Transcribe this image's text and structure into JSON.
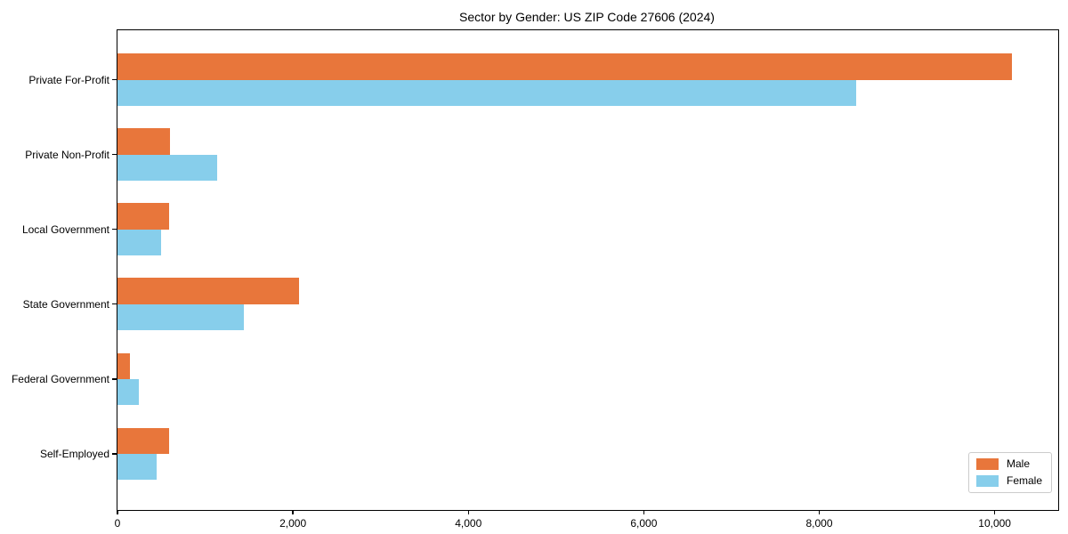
{
  "chart_data": {
    "type": "bar",
    "orientation": "horizontal",
    "title": "Sector by Gender: US ZIP Code 27606 (2024)",
    "categories": [
      "Private For-Profit",
      "Private Non-Profit",
      "Local Government",
      "State Government",
      "Federal Government",
      "Self-Employed"
    ],
    "series": [
      {
        "name": "Male",
        "color": "#e8763b",
        "values": [
          10200,
          600,
          590,
          2070,
          145,
          590
        ]
      },
      {
        "name": "Female",
        "color": "#87ceeb",
        "values": [
          8420,
          1140,
          500,
          1445,
          245,
          450
        ]
      }
    ],
    "xlabel": "",
    "ylabel": "",
    "xlim": [
      0,
      10724
    ],
    "x_ticks": [
      0,
      2000,
      4000,
      6000,
      8000,
      10000
    ],
    "x_tick_labels": [
      "0",
      "2,000",
      "4,000",
      "6,000",
      "8,000",
      "10,000"
    ],
    "grid": false,
    "legend_position": "lower right"
  }
}
